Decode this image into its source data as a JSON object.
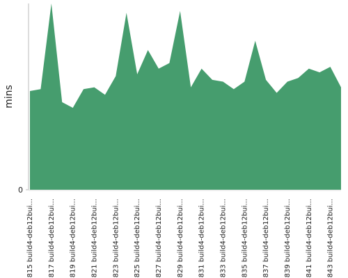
{
  "chart_data": {
    "type": "area",
    "y_label": "mins",
    "color": "#469d6e",
    "categories": [
      "#815 build4-deb12bui...",
      null,
      "#817 build4-deb12bui...",
      null,
      "#819 build4-deb12bui...",
      null,
      "#821 build4-deb12bui...",
      null,
      "#823 build4-deb12bui...",
      null,
      "#825 build4-deb12bui...",
      null,
      "#827 build4-deb12bui...",
      null,
      "#829 build4-deb12bui...",
      null,
      "#831 build4-deb12bui...",
      null,
      "#833 build4-deb12bui...",
      null,
      "#835 build4-deb12bui...",
      null,
      "#837 build4-deb12bui...",
      null,
      "#839 build4-deb12bui...",
      null,
      "#841 build4-deb12bui...",
      null,
      "#843 build4-deb12bui...",
      null
    ],
    "values": [
      53,
      54,
      100,
      47,
      44,
      54,
      55,
      51,
      61,
      95,
      62,
      75,
      65,
      68,
      96,
      55,
      65,
      59,
      58,
      54,
      58,
      80,
      59,
      52,
      58,
      60,
      65,
      63,
      66,
      55
    ],
    "ylim": [
      0,
      100
    ],
    "yticks": [
      0
    ]
  }
}
